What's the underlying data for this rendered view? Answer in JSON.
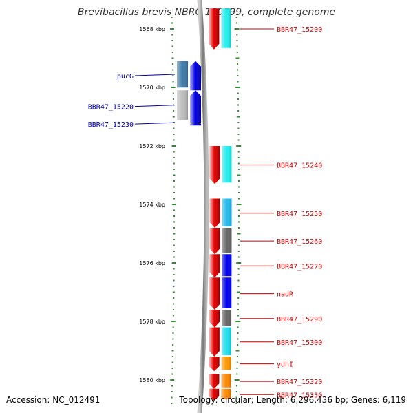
{
  "title": "Brevibacillus brevis NBRC 100599, complete genome",
  "footer": {
    "accession": "Accession: NC_012491",
    "topology": "Topology: circular; Length: 6,296,436 bp; Genes: 6,119"
  },
  "colors": {
    "backbone": "#888888",
    "tick": "#2e8b2e",
    "forward_strand": "#ee0000",
    "reverse_strand": "#0000ee",
    "forward_label": "#cc0000",
    "reverse_label": "#0000aa"
  },
  "scale": {
    "unit": "kbp",
    "tick_labels": [
      "1568 kbp",
      "1570 kbp",
      "1572 kbp",
      "1574 kbp",
      "1576 kbp",
      "1578 kbp",
      "1580 kbp"
    ]
  },
  "genes": {
    "reverse": [
      {
        "label": "pucG",
        "start_kbp": 1569.1,
        "end_kbp": 1570.1
      },
      {
        "label": "BBR47_15220",
        "start_kbp": 1570.1,
        "end_kbp": 1571.2
      },
      {
        "label": "BBR47_15230",
        "start_kbp": 1571.2,
        "end_kbp": 1571.3
      }
    ],
    "forward": [
      {
        "label": "BBR47_15200",
        "start_kbp": 1567.3,
        "end_kbp": 1568.7,
        "cog_color": "#22eeee"
      },
      {
        "label": "BBR47_15240",
        "start_kbp": 1572.0,
        "end_kbp": 1573.3,
        "cog_color": "#22eeee"
      },
      {
        "label": "BBR47_15250",
        "start_kbp": 1573.8,
        "end_kbp": 1574.8,
        "cog_color": "#22bbee"
      },
      {
        "label": "BBR47_15260",
        "start_kbp": 1574.8,
        "end_kbp": 1575.7,
        "cog_color": "#666666"
      },
      {
        "label": "BBR47_15270",
        "start_kbp": 1575.7,
        "end_kbp": 1576.5,
        "cog_color": "#0000ee"
      },
      {
        "label": "nadR",
        "start_kbp": 1576.5,
        "end_kbp": 1577.6,
        "cog_color": "#0000ee"
      },
      {
        "label": "BBR47_15290",
        "start_kbp": 1577.6,
        "end_kbp": 1578.2,
        "cog_color": "#666666"
      },
      {
        "label": "BBR47_15300",
        "start_kbp": 1578.2,
        "end_kbp": 1579.2,
        "cog_color": "#22ddee"
      },
      {
        "label": "ydhI",
        "start_kbp": 1579.2,
        "end_kbp": 1579.7,
        "cog_color": "#ff9900"
      },
      {
        "label": "BBR47_15320",
        "start_kbp": 1579.8,
        "end_kbp": 1580.3,
        "cog_color": "#ff8800"
      },
      {
        "label": "BBR47_15330",
        "start_kbp": 1580.3,
        "end_kbp": 1580.7,
        "cog_color": "#ff8800"
      }
    ]
  }
}
